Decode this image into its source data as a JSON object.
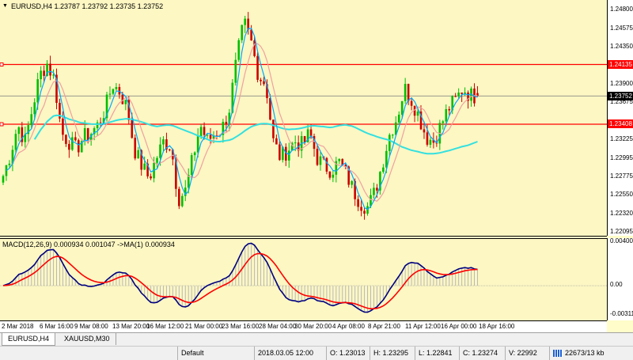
{
  "chart_title": "EURUSD,H4  1.23787 1.23792 1.23735 1.23752",
  "macd_title": "MACD(12,26,9) 0.000934 0.001047  ->MA(1) 0.000934",
  "price_axis": [
    "1.24800",
    "1.24575",
    "1.24350",
    "1.24135",
    "1.23900",
    "1.23752",
    "1.23675",
    "1.23408",
    "1.23225",
    "1.22995",
    "1.22775",
    "1.22550",
    "1.22320",
    "1.22095"
  ],
  "macd_axis": [
    "0.004009",
    "0.00",
    "-0.003117"
  ],
  "time_axis": [
    "2 Mar 2018",
    "6 Mar 16:00",
    "9 Mar 08:00",
    "13 Mar 20:00",
    "16 Mar 12:00",
    "21 Mar 00:00",
    "23 Mar 16:00",
    "28 Mar 04:00",
    "30 Mar 20:00",
    "4 Apr 08:00",
    "8 Apr 21:00",
    "11 Apr 12:00",
    "16 Apr 00:00",
    "18 Apr 16:00"
  ],
  "tags": {
    "upper": "1.24135",
    "current": "1.23752",
    "lower": "1.23408"
  },
  "tabs": [
    "EURUSD,H4",
    "XAUUSD,M30"
  ],
  "status": {
    "profile": "Default",
    "datetime": "2018.03.05 12:00",
    "open": "O: 1.23013",
    "high": "H: 1.23295",
    "low": "L: 1.22841",
    "close": "C: 1.23274",
    "volume": "V: 22992",
    "traffic": "22673/13 kb"
  },
  "colors": {
    "bull": "#00bf00",
    "bear": "#cc0000",
    "ma_fast": "#00a8ff",
    "ma_mid": "#f0a0a0",
    "ma_slow": "#33e0e0",
    "level": "#ff0000",
    "macd": "#000080",
    "signal": "#ff0000"
  },
  "chart_data": {
    "type": "candlestick",
    "symbol": "EURUSD",
    "timeframe": "H4",
    "last": {
      "open": 1.23787,
      "high": 1.23792,
      "low": 1.23735,
      "close": 1.23752
    },
    "levels": [
      1.24135,
      1.23408
    ],
    "ylim": [
      1.2205,
      1.2492
    ],
    "close_series": [
      1.2278,
      1.2305,
      1.234,
      1.232,
      1.236,
      1.24,
      1.2415,
      1.2395,
      1.233,
      1.232,
      1.231,
      1.2325,
      1.233,
      1.234,
      1.236,
      1.239,
      1.238,
      1.236,
      1.231,
      1.229,
      1.2275,
      1.23,
      1.232,
      1.2315,
      1.225,
      1.226,
      1.23,
      1.234,
      1.232,
      1.233,
      1.2335,
      1.236,
      1.242,
      1.2465,
      1.244,
      1.24,
      1.239,
      1.232,
      1.23,
      1.231,
      1.232,
      1.2315,
      1.233,
      1.23,
      1.229,
      1.2285,
      1.2295,
      1.228,
      1.226,
      1.2245,
      1.224,
      1.226,
      1.2295,
      1.233,
      1.235,
      1.2385,
      1.237,
      1.235,
      1.2325,
      1.232,
      1.234,
      1.236,
      1.237,
      1.2385,
      1.2376,
      1.2375
    ],
    "macd_ylim": [
      -0.0032,
      0.0042
    ]
  }
}
